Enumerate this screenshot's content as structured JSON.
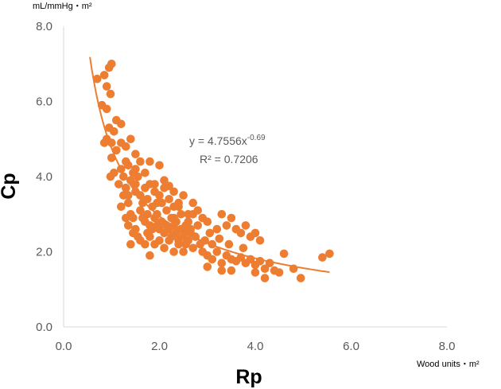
{
  "chart_data": {
    "type": "scatter",
    "title": "",
    "xlabel": "Rp",
    "ylabel": "Cp",
    "x_unit": "Wood units・m²",
    "y_unit": "mL/mmHg・m²",
    "xlim": [
      0,
      8
    ],
    "ylim": [
      0,
      8
    ],
    "x_ticks": [
      "0.0",
      "2.0",
      "4.0",
      "6.0",
      "8.0"
    ],
    "y_ticks": [
      "0.0",
      "2.0",
      "4.0",
      "6.0",
      "8.0"
    ],
    "grid": false,
    "legend": "none",
    "colors": {
      "points": "#ED7D31",
      "trendline": "#ED7D31",
      "axis": "#D9D9D9",
      "text": "#595959"
    },
    "trendline": {
      "type": "power",
      "coefficient": 4.7556,
      "exponent": -0.69,
      "equation_prefix": "y = 4.7556x",
      "equation_exponent": "-0.69",
      "r_squared_label": "R² = 0.7206",
      "x_range": [
        0.55,
        5.55
      ]
    },
    "points": [
      [
        0.7,
        6.6
      ],
      [
        0.85,
        6.7
      ],
      [
        0.9,
        6.4
      ],
      [
        0.95,
        6.9
      ],
      [
        1.0,
        7.0
      ],
      [
        0.98,
        6.2
      ],
      [
        0.8,
        5.9
      ],
      [
        0.9,
        5.8
      ],
      [
        1.1,
        5.5
      ],
      [
        0.95,
        5.3
      ],
      [
        1.2,
        5.4
      ],
      [
        1.05,
        5.2
      ],
      [
        0.9,
        5.0
      ],
      [
        1.0,
        4.9
      ],
      [
        1.2,
        4.9
      ],
      [
        1.4,
        5.0
      ],
      [
        0.85,
        4.9
      ],
      [
        1.1,
        4.7
      ],
      [
        1.3,
        4.8
      ],
      [
        1.5,
        4.6
      ],
      [
        1.6,
        4.4
      ],
      [
        1.8,
        4.4
      ],
      [
        2.0,
        4.3
      ],
      [
        1.0,
        4.5
      ],
      [
        1.05,
        4.1
      ],
      [
        0.98,
        4.0
      ],
      [
        1.2,
        4.2
      ],
      [
        1.25,
        4.0
      ],
      [
        1.35,
        4.3
      ],
      [
        1.4,
        3.9
      ],
      [
        1.45,
        4.1
      ],
      [
        1.5,
        3.8
      ],
      [
        1.55,
        4.0
      ],
      [
        1.3,
        3.7
      ],
      [
        1.25,
        3.5
      ],
      [
        1.35,
        3.3
      ],
      [
        1.2,
        3.2
      ],
      [
        1.3,
        2.9
      ],
      [
        1.4,
        3.0
      ],
      [
        1.35,
        2.7
      ],
      [
        1.5,
        3.6
      ],
      [
        1.6,
        3.5
      ],
      [
        1.7,
        3.7
      ],
      [
        1.75,
        3.4
      ],
      [
        1.8,
        3.8
      ],
      [
        1.85,
        3.2
      ],
      [
        1.9,
        3.6
      ],
      [
        1.95,
        3.0
      ],
      [
        2.0,
        3.5
      ],
      [
        2.05,
        3.3
      ],
      [
        2.1,
        3.7
      ],
      [
        2.15,
        3.1
      ],
      [
        2.2,
        3.4
      ],
      [
        2.25,
        2.9
      ],
      [
        2.3,
        3.2
      ],
      [
        2.35,
        2.8
      ],
      [
        2.4,
        3.3
      ],
      [
        2.45,
        3.0
      ],
      [
        2.5,
        3.5
      ],
      [
        2.55,
        2.7
      ],
      [
        2.6,
        3.0
      ],
      [
        1.6,
        3.1
      ],
      [
        1.65,
        2.9
      ],
      [
        1.7,
        2.8
      ],
      [
        1.75,
        3.0
      ],
      [
        1.8,
        2.7
      ],
      [
        1.85,
        2.6
      ],
      [
        1.9,
        2.9
      ],
      [
        1.95,
        2.7
      ],
      [
        2.0,
        2.6
      ],
      [
        2.05,
        2.8
      ],
      [
        2.1,
        2.5
      ],
      [
        2.15,
        2.7
      ],
      [
        2.2,
        2.6
      ],
      [
        2.25,
        2.4
      ],
      [
        2.3,
        2.7
      ],
      [
        2.35,
        2.5
      ],
      [
        2.4,
        2.3
      ],
      [
        2.45,
        2.6
      ],
      [
        2.5,
        2.4
      ],
      [
        1.5,
        2.6
      ],
      [
        1.55,
        2.4
      ],
      [
        1.6,
        2.3
      ],
      [
        1.45,
        2.5
      ],
      [
        1.4,
        2.2
      ],
      [
        1.7,
        2.2
      ],
      [
        1.8,
        2.4
      ],
      [
        1.9,
        2.2
      ],
      [
        2.0,
        2.3
      ],
      [
        2.1,
        2.1
      ],
      [
        2.2,
        2.3
      ],
      [
        2.3,
        2.0
      ],
      [
        2.4,
        2.2
      ],
      [
        2.5,
        2.0
      ],
      [
        2.55,
        2.2
      ],
      [
        1.8,
        1.9
      ],
      [
        2.6,
        2.8
      ],
      [
        2.65,
        2.5
      ],
      [
        2.7,
        3.0
      ],
      [
        2.8,
        2.7
      ],
      [
        2.9,
        2.9
      ],
      [
        3.0,
        2.8
      ],
      [
        2.75,
        2.4
      ],
      [
        2.85,
        2.2
      ],
      [
        2.95,
        2.3
      ],
      [
        3.05,
        2.5
      ],
      [
        3.1,
        2.2
      ],
      [
        3.2,
        2.6
      ],
      [
        3.3,
        3.0
      ],
      [
        3.4,
        2.7
      ],
      [
        3.5,
        2.9
      ],
      [
        3.6,
        2.6
      ],
      [
        3.7,
        2.5
      ],
      [
        3.8,
        2.7
      ],
      [
        3.9,
        2.4
      ],
      [
        4.0,
        2.5
      ],
      [
        4.1,
        2.3
      ],
      [
        2.9,
        2.0
      ],
      [
        3.0,
        1.9
      ],
      [
        3.1,
        1.8
      ],
      [
        3.2,
        2.0
      ],
      [
        3.3,
        1.7
      ],
      [
        3.4,
        1.9
      ],
      [
        3.5,
        1.8
      ],
      [
        3.6,
        1.75
      ],
      [
        3.7,
        1.85
      ],
      [
        3.8,
        1.7
      ],
      [
        3.9,
        1.8
      ],
      [
        4.0,
        1.65
      ],
      [
        4.1,
        1.75
      ],
      [
        4.2,
        1.55
      ],
      [
        4.3,
        1.7
      ],
      [
        4.4,
        1.5
      ],
      [
        4.5,
        1.45
      ],
      [
        4.6,
        1.95
      ],
      [
        4.8,
        1.55
      ],
      [
        4.95,
        1.3
      ],
      [
        4.2,
        1.3
      ],
      [
        3.3,
        1.5
      ],
      [
        3.5,
        1.5
      ],
      [
        5.4,
        1.85
      ],
      [
        5.55,
        1.95
      ],
      [
        4.0,
        1.45
      ],
      [
        3.0,
        1.6
      ],
      [
        2.1,
        3.9
      ],
      [
        2.2,
        3.75
      ],
      [
        2.3,
        3.6
      ],
      [
        2.4,
        3.2
      ],
      [
        1.9,
        3.8
      ],
      [
        1.7,
        4.1
      ],
      [
        1.5,
        4.2
      ],
      [
        1.3,
        4.4
      ],
      [
        2.7,
        3.3
      ],
      [
        2.8,
        3.1
      ],
      [
        2.6,
        2.3
      ],
      [
        2.7,
        2.1
      ],
      [
        3.25,
        2.35
      ],
      [
        3.45,
        2.2
      ],
      [
        3.75,
        2.1
      ],
      [
        1.15,
        3.8
      ],
      [
        1.35,
        3.5
      ],
      [
        1.65,
        3.3
      ],
      [
        1.95,
        3.3
      ],
      [
        2.3,
        2.9
      ],
      [
        2.55,
        2.6
      ],
      [
        2.65,
        2.6
      ],
      [
        1.45,
        2.9
      ],
      [
        1.75,
        2.5
      ]
    ]
  }
}
